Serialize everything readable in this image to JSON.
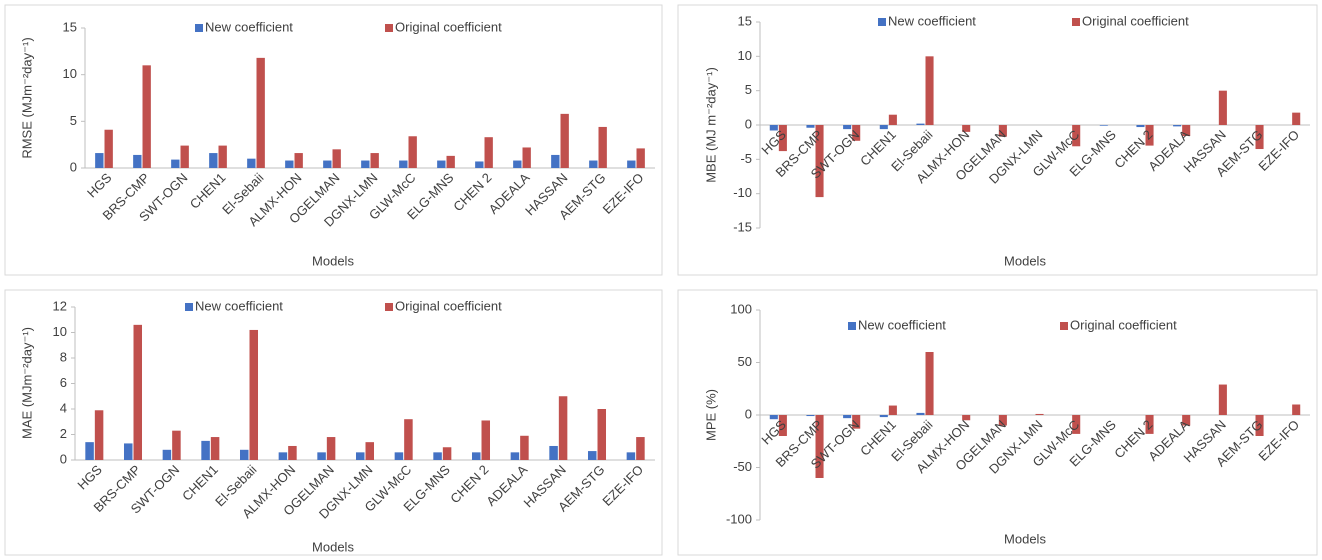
{
  "chart_data": [
    {
      "type": "bar",
      "y_label": "RMSE (MJm⁻²day⁻¹)",
      "x_label": "Models",
      "categories": [
        "HGS",
        "BRS-CMP",
        "SWT-OGN",
        "CHEN1",
        "El-Sebaii",
        "ALMX-HON",
        "OGELMAN",
        "DGNX-LMN",
        "GLW-McC",
        "ELG-MNS",
        "CHEN 2",
        "ADEALA",
        "HASSAN",
        "AEM-STG",
        "EZE-IFO"
      ],
      "series": [
        {
          "name": "New coefficient",
          "color": "#4472c4",
          "values": [
            1.6,
            1.4,
            0.9,
            1.6,
            1.0,
            0.8,
            0.8,
            0.8,
            0.8,
            0.8,
            0.7,
            0.8,
            1.4,
            0.8,
            0.8
          ]
        },
        {
          "name": "Original coefficient",
          "color": "#c0504d",
          "values": [
            4.1,
            11.0,
            2.4,
            2.4,
            11.8,
            1.6,
            2.0,
            1.6,
            3.4,
            1.3,
            3.3,
            2.2,
            5.8,
            4.4,
            2.1
          ]
        }
      ],
      "ylim": [
        0,
        15
      ],
      "yticks": [
        0,
        5,
        10,
        15
      ]
    },
    {
      "type": "bar",
      "y_label": "MBE (MJ m⁻²day⁻¹)",
      "x_label": "Models",
      "categories": [
        "HGS",
        "BRS-CMP",
        "SWT-OGN",
        "CHEN1",
        "El-Sebaii",
        "ALMX-HON",
        "OGELMAN",
        "DGNX-LMN",
        "GLW-McC",
        "ELG-MNS",
        "CHEN 2",
        "ADEALA",
        "HASSAN",
        "AEM-STG",
        "EZE-IFO"
      ],
      "series": [
        {
          "name": "New coefficient",
          "color": "#4472c4",
          "values": [
            -0.8,
            -0.4,
            -0.6,
            -0.6,
            0.2,
            0,
            0,
            0,
            0,
            -0.1,
            -0.3,
            -0.2,
            0,
            0,
            0
          ]
        },
        {
          "name": "Original coefficient",
          "color": "#c0504d",
          "values": [
            -3.8,
            -10.5,
            -2.3,
            1.5,
            10.0,
            -1.0,
            -1.7,
            0,
            -3.1,
            0,
            -3.0,
            -1.6,
            5.0,
            -3.5,
            1.8
          ]
        }
      ],
      "ylim": [
        -15,
        15
      ],
      "yticks": [
        -15,
        -10,
        -5,
        0,
        5,
        10,
        15
      ]
    },
    {
      "type": "bar",
      "y_label": "MAE (MJm⁻²day⁻¹)",
      "x_label": "Models",
      "categories": [
        "HGS",
        "BRS-CMP",
        "SWT-OGN",
        "CHEN1",
        "El-Sebaii",
        "ALMX-HON",
        "OGELMAN",
        "DGNX-LMN",
        "GLW-McC",
        "ELG-MNS",
        "CHEN 2",
        "ADEALA",
        "HASSAN",
        "AEM-STG",
        "EZE-IFO"
      ],
      "series": [
        {
          "name": "New coefficient",
          "color": "#4472c4",
          "values": [
            1.4,
            1.3,
            0.8,
            1.5,
            0.8,
            0.6,
            0.6,
            0.6,
            0.6,
            0.6,
            0.6,
            0.6,
            1.1,
            0.7,
            0.6
          ]
        },
        {
          "name": "Original coefficient",
          "color": "#c0504d",
          "values": [
            3.9,
            10.6,
            2.3,
            1.8,
            10.2,
            1.1,
            1.8,
            1.4,
            3.2,
            1.0,
            3.1,
            1.9,
            5.0,
            4.0,
            1.8
          ]
        }
      ],
      "ylim": [
        0,
        12
      ],
      "yticks": [
        0,
        2,
        4,
        6,
        8,
        10,
        12
      ]
    },
    {
      "type": "bar",
      "y_label": "MPE (%)",
      "x_label": "Models",
      "categories": [
        "HGS",
        "BRS-CMP",
        "SWT-OGN",
        "CHEN1",
        "El-Sebaii",
        "ALMX-HON",
        "OGELMAN",
        "DGNX-LMN",
        "GLW-McC",
        "ELG-MNS",
        "CHEN 2",
        "ADEALA",
        "HASSAN",
        "AEM-STG",
        "EZE-IFO"
      ],
      "series": [
        {
          "name": "New coefficient",
          "color": "#4472c4",
          "values": [
            -4,
            -1,
            -3,
            -2,
            2,
            0,
            0,
            0,
            0,
            0,
            0,
            0,
            0,
            0,
            0
          ]
        },
        {
          "name": "Original coefficient",
          "color": "#c0504d",
          "values": [
            -20,
            -60,
            -13,
            9,
            60,
            -5,
            -10,
            1,
            -18,
            0,
            -18,
            -10,
            29,
            -20,
            10
          ]
        }
      ],
      "ylim": [
        -100,
        100
      ],
      "yticks": [
        -100,
        -50,
        0,
        50,
        100
      ]
    }
  ]
}
